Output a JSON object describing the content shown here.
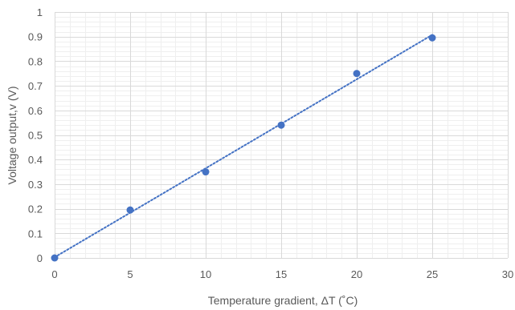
{
  "chart_data": {
    "type": "scatter",
    "title": "",
    "xlabel": "Temperature gradient, ΔT (˚C)",
    "ylabel": "Voltage output,v (V)",
    "xlim": [
      0,
      30
    ],
    "ylim": [
      0,
      1
    ],
    "x_ticks": [
      "0",
      "5",
      "10",
      "15",
      "20",
      "25",
      "30"
    ],
    "y_ticks": [
      "0",
      "0.1",
      "0.2",
      "0.3",
      "0.4",
      "0.5",
      "0.6",
      "0.7",
      "0.8",
      "0.9",
      "1"
    ],
    "grid": true,
    "legend": "none",
    "trendline": "linear, dotted",
    "series": [
      {
        "x": [
          0,
          5,
          10,
          15,
          20,
          25
        ],
        "y": [
          0,
          0.195,
          0.35,
          0.54,
          0.75,
          0.895
        ]
      }
    ],
    "colors": {
      "marker": "#4472c4",
      "trendline": "#4472c4",
      "major_grid": "#d9d9d9",
      "minor_grid": "#efefef",
      "text": "#595959"
    }
  }
}
